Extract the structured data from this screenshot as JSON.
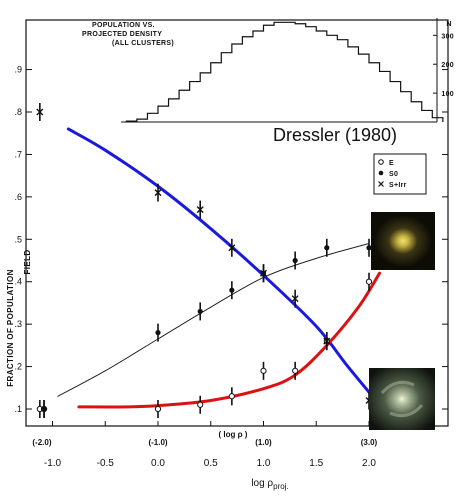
{
  "chart_data": [
    {
      "type": "line",
      "ylabel": "FRACTION OF POPULATION",
      "xlabel_prefix": "log ρ",
      "xlabel_sub": "proj.",
      "field_label": "FIELD",
      "xlim": [
        -1.2,
        2.3
      ],
      "ylim": [
        0.05,
        0.9
      ],
      "y_ticks": [
        0.1,
        0.2,
        0.3,
        0.4,
        0.5,
        0.6,
        0.7,
        0.8,
        0.9
      ],
      "y_tick_labels": [
        ".1",
        ".2",
        ".3",
        ".4",
        ".5",
        ".6",
        ".7",
        ".8",
        ".9"
      ],
      "x_ticks": [
        -1.0,
        -0.5,
        0.0,
        0.5,
        1.0,
        1.5,
        2.0
      ],
      "x_tick_labels": [
        "-1.0",
        "-0.5",
        "0.0",
        "0.5",
        "1.0",
        "1.5",
        "2.0"
      ],
      "inner_axis_label": "( log ρ )",
      "inner_ticks": [
        {
          "x": -1.1,
          "label": "(-2.0)"
        },
        {
          "x": 0.0,
          "label": "(-1.0)"
        },
        {
          "x": 1.0,
          "label": "(1.0)"
        },
        {
          "x": 2.0,
          "label": "(3.0)"
        }
      ],
      "legend": {
        "entries": [
          {
            "marker": "open-circle",
            "label": "E"
          },
          {
            "marker": "filled-circle",
            "label": "S0"
          },
          {
            "marker": "cross",
            "label": "S+Irr"
          }
        ]
      },
      "annotation": "Dressler (1980)",
      "data_series": [
        {
          "marker": "open-circle",
          "points": [
            [
              -1.12,
              0.1
            ],
            [
              -1.08,
              0.1
            ],
            [
              0.0,
              0.1
            ],
            [
              0.4,
              0.11
            ],
            [
              0.7,
              0.13
            ],
            [
              1.0,
              0.19
            ],
            [
              1.3,
              0.19
            ],
            [
              1.6,
              0.26
            ],
            [
              2.0,
              0.4
            ]
          ]
        },
        {
          "marker": "filled-circle",
          "points": [
            [
              -1.08,
              0.1
            ],
            [
              0.0,
              0.28
            ],
            [
              0.4,
              0.33
            ],
            [
              0.7,
              0.38
            ],
            [
              1.0,
              0.42
            ],
            [
              1.3,
              0.45
            ],
            [
              1.6,
              0.48
            ],
            [
              2.0,
              0.48
            ]
          ]
        },
        {
          "marker": "cross",
          "points": [
            [
              -1.12,
              0.8
            ],
            [
              0.0,
              0.61
            ],
            [
              0.4,
              0.57
            ],
            [
              0.7,
              0.48
            ],
            [
              1.0,
              0.42
            ],
            [
              1.3,
              0.36
            ],
            [
              1.6,
              0.26
            ],
            [
              2.0,
              0.12
            ]
          ]
        }
      ],
      "fit_lines": [
        {
          "color": "#222222",
          "width": 1,
          "points": [
            [
              -0.95,
              0.13
            ],
            [
              -0.5,
              0.19
            ],
            [
              0.0,
              0.265
            ],
            [
              0.5,
              0.34
            ],
            [
              1.0,
              0.41
            ],
            [
              1.5,
              0.455
            ],
            [
              2.0,
              0.49
            ]
          ]
        },
        {
          "color": "#1a1adf",
          "width": 3,
          "points": [
            [
              -0.85,
              0.76
            ],
            [
              -0.5,
              0.71
            ],
            [
              0.0,
              0.625
            ],
            [
              0.5,
              0.525
            ],
            [
              1.0,
              0.415
            ],
            [
              1.5,
              0.295
            ],
            [
              1.8,
              0.2
            ],
            [
              2.1,
              0.11
            ]
          ]
        },
        {
          "color": "#dd1111",
          "width": 3,
          "points": [
            [
              -0.75,
              0.105
            ],
            [
              -0.3,
              0.105
            ],
            [
              0.0,
              0.108
            ],
            [
              0.5,
              0.12
            ],
            [
              1.0,
              0.148
            ],
            [
              1.3,
              0.18
            ],
            [
              1.6,
              0.25
            ],
            [
              1.9,
              0.34
            ],
            [
              2.1,
              0.42
            ]
          ]
        }
      ],
      "galaxy_images": [
        {
          "label": "elliptical-galaxy-image",
          "colors": [
            "#f0e37a",
            "#c9b640",
            "#3a3415",
            "#0d0d06"
          ]
        },
        {
          "label": "spiral-galaxy-image",
          "colors": [
            "#f5f4d8",
            "#b9c4a5",
            "#4b5a45",
            "#0f130e"
          ]
        }
      ]
    },
    {
      "type": "bar",
      "title_lines": [
        "POPULATION VS.",
        "PROJECTED DENSITY",
        "(ALL CLUSTERS)"
      ],
      "ylabel": "N",
      "y_ticks": [
        100,
        200,
        300
      ],
      "y_tick_labels": [
        "100",
        "200",
        "300"
      ],
      "ylim": [
        0,
        360
      ],
      "xlim": [
        -1.2,
        2.3
      ],
      "bin_width": 0.1,
      "bins_start": -0.3,
      "values": [
        3,
        10,
        30,
        55,
        80,
        110,
        140,
        170,
        205,
        240,
        270,
        295,
        315,
        335,
        345,
        345,
        340,
        330,
        315,
        300,
        285,
        260,
        235,
        205,
        175,
        140,
        105,
        70,
        40,
        15
      ]
    }
  ]
}
